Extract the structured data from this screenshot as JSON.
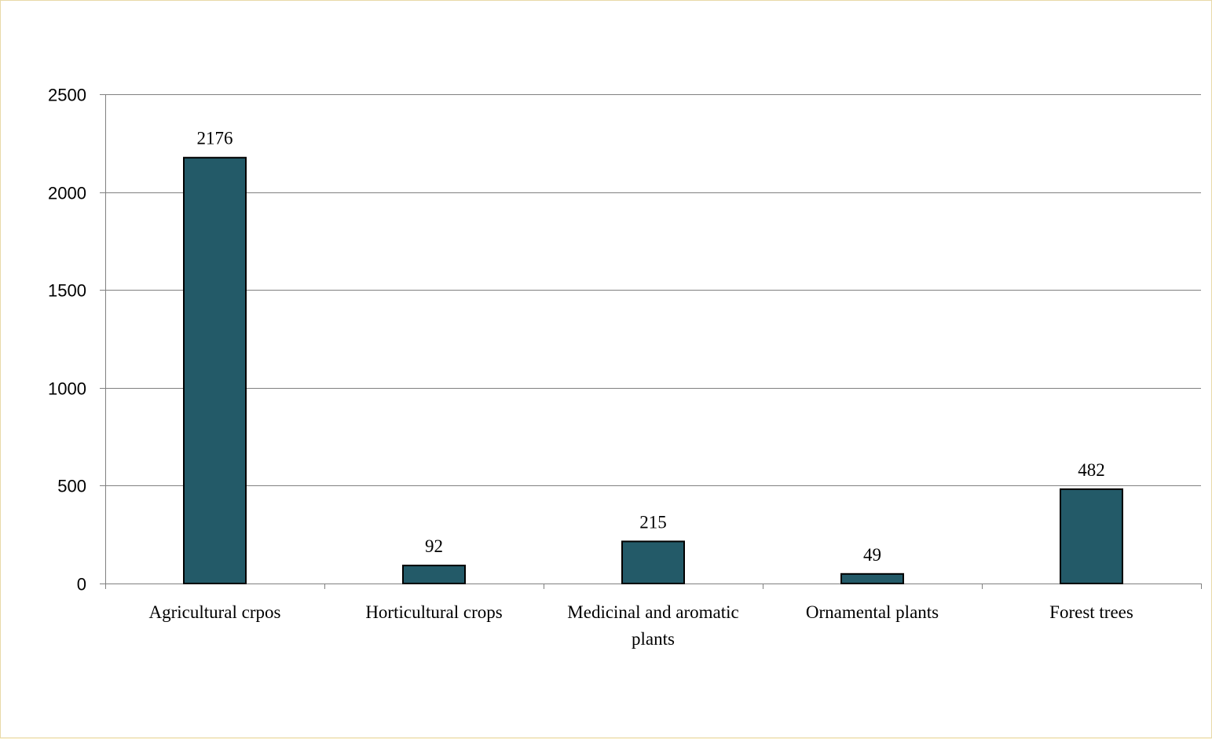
{
  "chart_data": {
    "type": "bar",
    "categories": [
      [
        "Agricultural crpos"
      ],
      [
        "Horticultural crops"
      ],
      [
        "Medicinal and aromatic",
        "plants"
      ],
      [
        "Ornamental plants"
      ],
      [
        "Forest trees"
      ]
    ],
    "values": [
      2176,
      92,
      215,
      49,
      482
    ],
    "value_labels": [
      "2176",
      "92",
      "215",
      "49",
      "482"
    ],
    "ylim": [
      0,
      2500
    ],
    "yticks": [
      0,
      500,
      1000,
      1500,
      2000,
      2500
    ],
    "grid": true,
    "legend": "none",
    "colors": {
      "bar": "#235a68",
      "bar_outline": "#000000",
      "gridline": "#808080",
      "axis": "#808080",
      "frame_border": "#e8d9a8",
      "background": "#fef6dd"
    }
  }
}
